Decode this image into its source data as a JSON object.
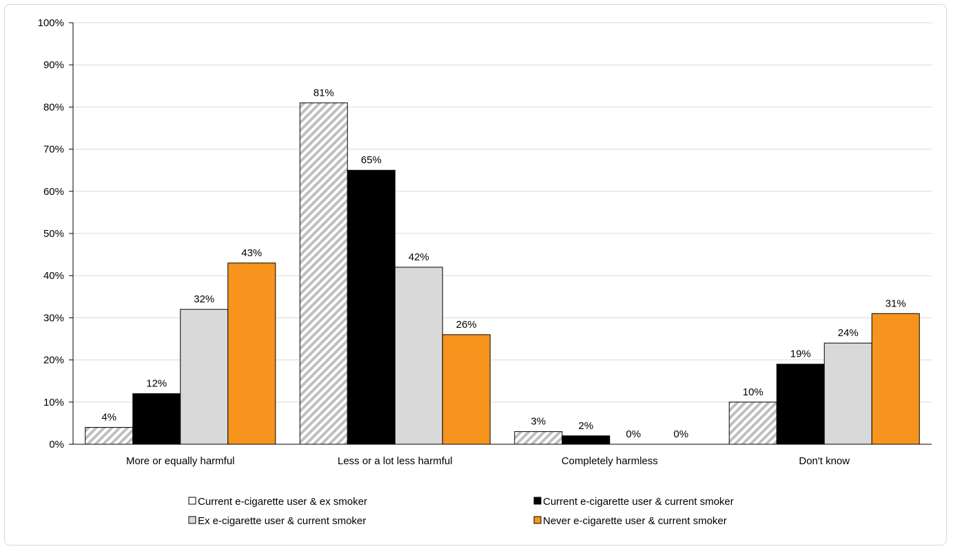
{
  "chart_data": {
    "type": "bar",
    "categories": [
      "More or equally harmful",
      "Less or a lot less harmful",
      "Completely harmless",
      "Don't know"
    ],
    "series": [
      {
        "name": "Current e-cigarette user & ex smoker",
        "values": [
          4,
          81,
          3,
          10
        ],
        "color": "#bfbfbf",
        "pattern": "diagonal-stripes"
      },
      {
        "name": "Current e-cigarette user & current smoker",
        "values": [
          12,
          65,
          2,
          19
        ],
        "color": "#000000"
      },
      {
        "name": "Ex e-cigarette user & current smoker",
        "values": [
          32,
          42,
          0,
          24
        ],
        "color": "#d9d9d9"
      },
      {
        "name": "Never e-cigarette user & current smoker",
        "values": [
          43,
          26,
          0,
          31
        ],
        "color": "#f7941d"
      }
    ],
    "value_format": "{v}%",
    "ylim": [
      0,
      100
    ],
    "yticks": [
      "0%",
      "10%",
      "20%",
      "30%",
      "40%",
      "50%",
      "60%",
      "70%",
      "80%",
      "90%",
      "100%"
    ],
    "ytick_values": [
      0,
      10,
      20,
      30,
      40,
      50,
      60,
      70,
      80,
      90,
      100
    ],
    "grid": true,
    "legend_position": "bottom"
  }
}
